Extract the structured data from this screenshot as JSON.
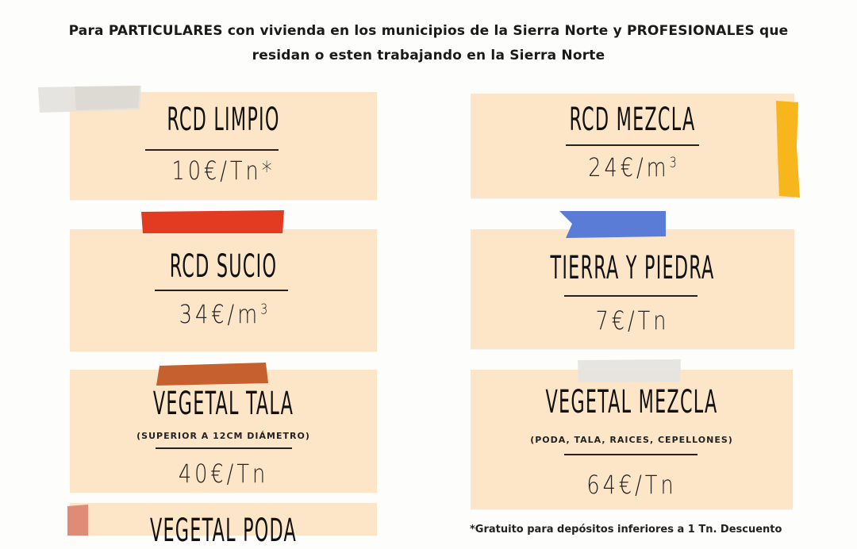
{
  "intro": {
    "line1": "Para PARTICULARES con vivienda en los municipios de la Sierra Norte y PROFESIONALES que",
    "line2": "residan o esten trabajando en la Sierra Norte"
  },
  "cards": [
    {
      "title": "RCD LIMPIO",
      "price": "10€/Tn*"
    },
    {
      "title": "RCD MEZCLA",
      "price": "24€/m",
      "price_sup": "3"
    },
    {
      "title": "RCD SUCIO",
      "price": "34€/m",
      "price_sup": "3"
    },
    {
      "title": "TIERRA Y PIEDRA",
      "price": "7€/Tn"
    },
    {
      "title": "VEGETAL TALA",
      "subtitle": "(SUPERIOR A 12CM DIÁMETRO)",
      "price": "40€/Tn"
    },
    {
      "title": "VEGETAL MEZCLA",
      "subtitle": "(PODA, TALA, RAICES, CEPELLONES)",
      "price": "64€/Tn"
    },
    {
      "title": "VEGETAL PODA"
    }
  ],
  "footnote": "*Gratuito para depósitos inferiores a  1 Tn. Descuento",
  "colors": {
    "card_bg": "#fde5c8",
    "tape_gray": "#e3e1dc",
    "tape_yellow": "#f6b61c",
    "tape_red": "#e23b22",
    "tape_blue": "#5b7cd6",
    "tape_rust": "#c6602f",
    "tape_salmon": "#e08a78"
  }
}
